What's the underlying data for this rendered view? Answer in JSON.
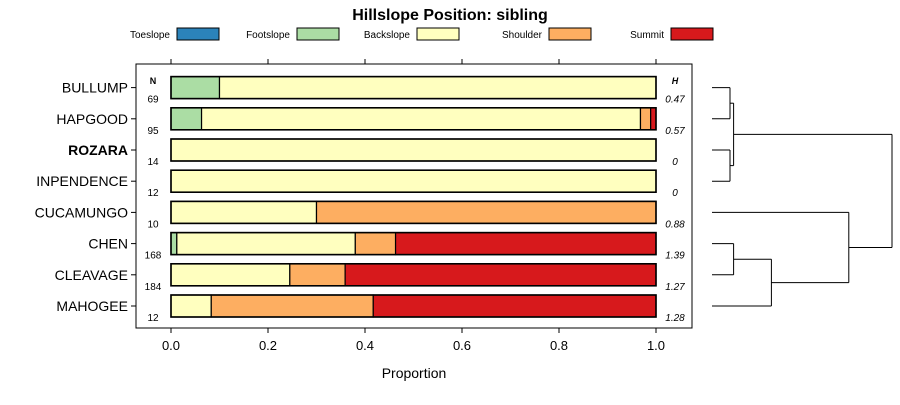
{
  "chart_data": {
    "type": "bar",
    "orientation": "horizontal",
    "stacked": true,
    "title": "Hillslope Position: sibling",
    "xlabel": "Proportion",
    "ylabel": "",
    "xlim": [
      0,
      1
    ],
    "xticks": [
      0,
      0.2,
      0.4,
      0.6,
      0.8,
      1
    ],
    "xtick_labels": [
      "0.0",
      "0.2",
      "0.4",
      "0.6",
      "0.8",
      "1.0"
    ],
    "legend_position": "top",
    "n_header": "N",
    "h_header": "H",
    "series": [
      {
        "name": "Toeslope",
        "color": "#2b83ba"
      },
      {
        "name": "Footslope",
        "color": "#abdda4"
      },
      {
        "name": "Backslope",
        "color": "#ffffbf"
      },
      {
        "name": "Shoulder",
        "color": "#fdae61"
      },
      {
        "name": "Summit",
        "color": "#d7191c"
      }
    ],
    "categories": [
      {
        "label": "BULLUMP",
        "n": "69",
        "h": "0.47",
        "bold": false,
        "values": [
          0,
          0.1,
          0.9,
          0,
          0
        ]
      },
      {
        "label": "HAPGOOD",
        "n": "95",
        "h": "0.57",
        "bold": false,
        "values": [
          0,
          0.063,
          0.905,
          0.021,
          0.011
        ]
      },
      {
        "label": "ROZARA",
        "n": "14",
        "h": "0",
        "bold": true,
        "values": [
          0,
          0,
          1.0,
          0,
          0
        ]
      },
      {
        "label": "INPENDENCE",
        "n": "12",
        "h": "0",
        "bold": false,
        "values": [
          0,
          0,
          1.0,
          0,
          0
        ]
      },
      {
        "label": "CUCAMUNGO",
        "n": "10",
        "h": "0.88",
        "bold": false,
        "values": [
          0,
          0,
          0.3,
          0.7,
          0
        ]
      },
      {
        "label": "CHEN",
        "n": "168",
        "h": "1.39",
        "bold": false,
        "values": [
          0,
          0.012,
          0.368,
          0.083,
          0.537
        ]
      },
      {
        "label": "CLEAVAGE",
        "n": "184",
        "h": "1.27",
        "bold": false,
        "values": [
          0,
          0,
          0.245,
          0.114,
          0.641
        ]
      },
      {
        "label": "MAHOGEE",
        "n": "12",
        "h": "1.28",
        "bold": false,
        "values": [
          0,
          0,
          0.083,
          0.334,
          0.583
        ]
      }
    ],
    "dendrogram": {
      "merges": [
        {
          "a": "BULLUMP",
          "b": "HAPGOOD",
          "height": 0.1
        },
        {
          "a": "ROZARA",
          "b": "INPENDENCE",
          "height": 0.1
        },
        {
          "a": "CHEN",
          "b": "CLEAVAGE",
          "height": 0.12
        },
        {
          "a": "[BULLUMP,HAPGOOD]",
          "b": "[ROZARA,INPENDENCE]",
          "height": 0.12
        },
        {
          "a": "[CHEN,CLEAVAGE]",
          "b": "MAHOGEE",
          "height": 0.33
        },
        {
          "a": "CUCAMUNGO",
          "b": "[[CHEN,CLEAVAGE],MAHOGEE]",
          "height": 0.76
        },
        {
          "a": "[[BULLUMP,HAPGOOD],[ROZARA,INPENDENCE]]",
          "b": "[CUCAMUNGO,...]",
          "height": 1.0
        }
      ]
    }
  }
}
